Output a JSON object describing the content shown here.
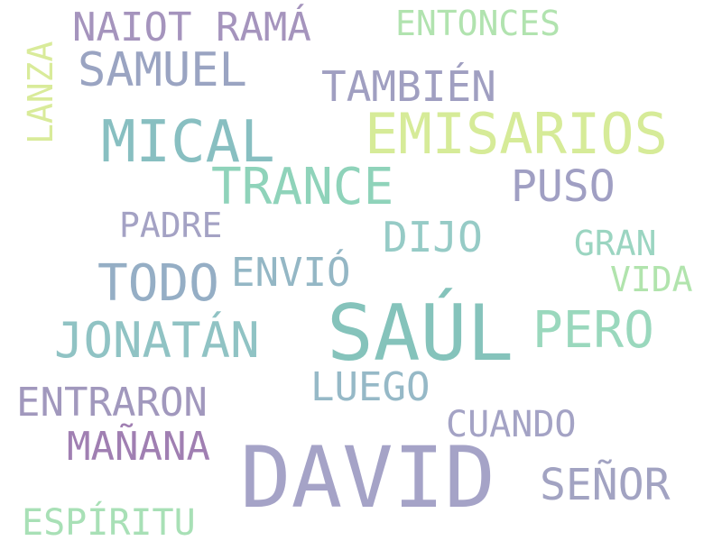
{
  "colors": {
    "background": "#ffffff"
  },
  "words": [
    {
      "text": "SAÚL",
      "color": "#85c3bb"
    },
    {
      "text": "DAVID",
      "color": "#a5a3c7"
    },
    {
      "text": "EMISARIOS",
      "color": "#d6eb98"
    },
    {
      "text": "MICAL",
      "color": "#88bfc1"
    },
    {
      "text": "TRANCE",
      "color": "#8fd3ba"
    },
    {
      "text": "JONATÁN",
      "color": "#90c3c4"
    },
    {
      "text": "SAMUEL",
      "color": "#9aa4c2"
    },
    {
      "text": "TODO",
      "color": "#95aec5"
    },
    {
      "text": "NAIOT RAMÁ",
      "color": "#a594bd"
    },
    {
      "text": "TAMBIÉN",
      "color": "#a09fc1"
    },
    {
      "text": "PERO",
      "color": "#9ad8bd"
    },
    {
      "text": "ENTRARON",
      "color": "#a198bd"
    },
    {
      "text": "MAÑANA",
      "color": "#a07fb2"
    },
    {
      "text": "SEÑOR",
      "color": "#a2a3c2"
    },
    {
      "text": "PUSO",
      "color": "#a09fc3"
    },
    {
      "text": "LUEGO",
      "color": "#96b9c7"
    },
    {
      "text": "ENVIÓ",
      "color": "#94b7c5"
    },
    {
      "text": "DIJO",
      "color": "#96cbc6"
    },
    {
      "text": "ENTONCES",
      "color": "#b1e3af"
    },
    {
      "text": "ESPÍRITU",
      "color": "#a8e0b6"
    },
    {
      "text": "CUANDO",
      "color": "#a4a3c5"
    },
    {
      "text": "PADRE",
      "color": "#a4a2c4"
    },
    {
      "text": "GRAN",
      "color": "#9bd5c1"
    },
    {
      "text": "VIDA",
      "color": "#b1e4ad"
    },
    {
      "text": "LANZA",
      "color": "#d9eb9a"
    }
  ]
}
